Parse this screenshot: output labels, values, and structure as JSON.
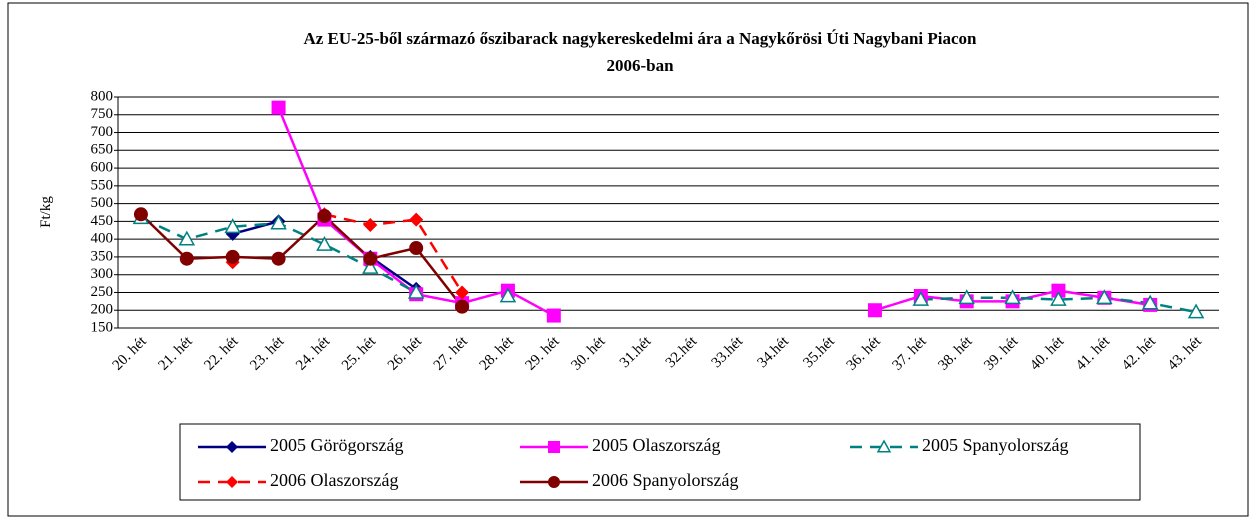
{
  "chart_data": {
    "type": "line",
    "title": [
      "Az EU-25-ből származó őszibarack nagykereskedelmi ára a Nagykőrösi Úti Nagybani Piacon",
      "2006-ban"
    ],
    "ylabel": "Ft/kg",
    "categories": [
      "20. hét",
      "21. hét",
      "22. hét",
      "23. hét",
      "24. hét",
      "25. hét",
      "26. hét",
      "27. hét",
      "28. hét",
      "29. hét",
      "30. hét",
      "31.hét",
      "32.hét",
      "33.hét",
      "34.hét",
      "35.hét",
      "36. hét",
      "37. hét",
      "38. hét",
      "39. hét",
      "40. hét",
      "41. hét",
      "42. hét",
      "43. hét"
    ],
    "ylim": [
      150,
      800
    ],
    "yticks": [
      150,
      200,
      250,
      300,
      350,
      400,
      450,
      500,
      550,
      600,
      650,
      700,
      750,
      800
    ],
    "grid": true,
    "series": [
      {
        "name": "2005 Görögország",
        "color": "#000080",
        "marker": "diamond",
        "dash": "solid",
        "values": [
          null,
          null,
          415,
          450,
          null,
          350,
          260,
          null,
          null,
          null,
          null,
          null,
          null,
          null,
          null,
          null,
          null,
          null,
          null,
          null,
          null,
          null,
          null,
          null
        ]
      },
      {
        "name": "2005 Olaszország",
        "color": "#ff00ff",
        "marker": "square",
        "dash": "solid",
        "values": [
          null,
          null,
          null,
          770,
          455,
          345,
          245,
          220,
          255,
          185,
          null,
          null,
          null,
          null,
          null,
          null,
          200,
          240,
          225,
          225,
          255,
          235,
          215,
          null
        ]
      },
      {
        "name": "2005 Spanyolország",
        "color": "#008080",
        "marker": "triangle",
        "dash": "dash",
        "values": [
          460,
          400,
          435,
          445,
          385,
          320,
          250,
          null,
          240,
          null,
          null,
          null,
          null,
          null,
          null,
          null,
          null,
          230,
          235,
          235,
          230,
          235,
          220,
          195
        ]
      },
      {
        "name": "2006 Olaszország",
        "color": "#ff0000",
        "marker": "diamond",
        "dash": "dash",
        "values": [
          null,
          null,
          335,
          null,
          470,
          440,
          455,
          250,
          null,
          null,
          null,
          null,
          null,
          null,
          null,
          null,
          null,
          null,
          null,
          null,
          null,
          null,
          null,
          null
        ]
      },
      {
        "name": "2006 Spanyolország",
        "color": "#800000",
        "marker": "circle",
        "dash": "solid",
        "values": [
          470,
          345,
          350,
          345,
          465,
          345,
          375,
          210,
          null,
          null,
          null,
          null,
          null,
          null,
          null,
          null,
          null,
          null,
          null,
          null,
          null,
          null,
          null,
          null
        ]
      }
    ]
  }
}
